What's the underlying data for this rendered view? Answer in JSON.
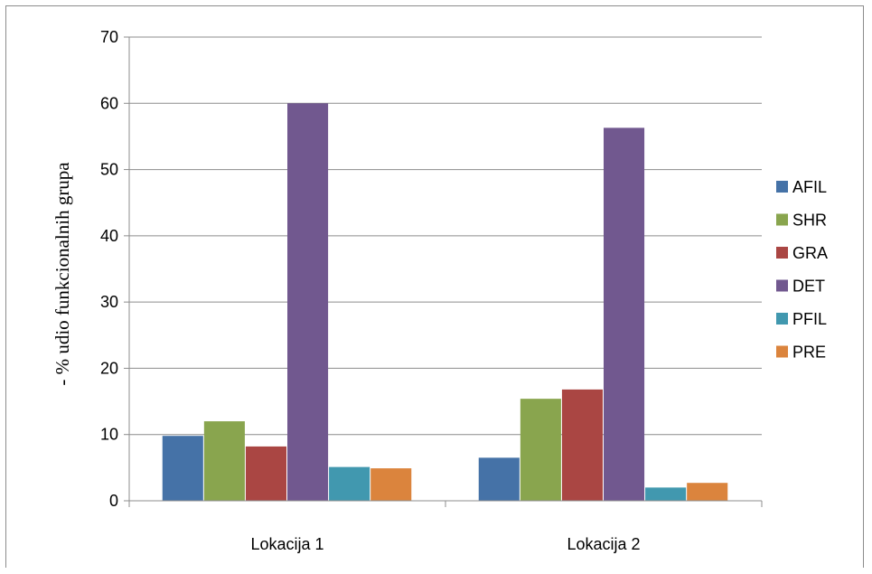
{
  "chart_data": {
    "type": "bar",
    "title": "",
    "xlabel": "",
    "ylabel": "- % udio funkcionalnih grupa",
    "categories": [
      "Lokacija 1",
      "Lokacija 2"
    ],
    "ylim": [
      0,
      70
    ],
    "yticks": [
      0,
      10,
      20,
      30,
      40,
      50,
      60,
      70
    ],
    "grid": true,
    "legend_position": "right",
    "series": [
      {
        "name": "AFIL",
        "color": "#4572a7",
        "values": [
          9.8,
          6.5
        ]
      },
      {
        "name": "SHR",
        "color": "#89a54e",
        "values": [
          12.0,
          15.4
        ]
      },
      {
        "name": "GRA",
        "color": "#aa4643",
        "values": [
          8.2,
          16.8
        ]
      },
      {
        "name": "DET",
        "color": "#71588f",
        "values": [
          60.0,
          56.3
        ]
      },
      {
        "name": "PFIL",
        "color": "#4198af",
        "values": [
          5.1,
          2.0
        ]
      },
      {
        "name": "PRE",
        "color": "#db843d",
        "values": [
          4.9,
          2.7
        ]
      }
    ]
  }
}
